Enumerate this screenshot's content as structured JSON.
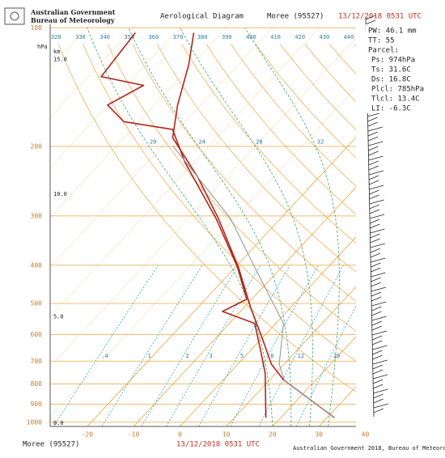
{
  "header": {
    "agency": "Australian Government",
    "bureau": "Bureau of Meteorology"
  },
  "chart_data": {
    "type": "skewt",
    "title": "Aerological Diagram",
    "station": "Moree (95527)",
    "time": "13/12/2018 0531 UTC",
    "y_unit": "hPa",
    "height_unit": "km",
    "xlim": [
      -28,
      38
    ],
    "ylim": [
      1025,
      98
    ],
    "xticks": [
      -20,
      -10,
      0,
      10,
      20,
      30,
      40
    ],
    "yticks": [
      1000,
      900,
      800,
      700,
      600,
      500,
      400,
      300,
      200,
      100
    ],
    "height_ticks": [
      {
        "value": 0,
        "label": "0.0"
      },
      {
        "value": 5,
        "label": "5.0"
      },
      {
        "value": 10,
        "label": "10.0"
      },
      {
        "value": 15,
        "label": "15.0"
      }
    ],
    "theta_labels": [
      320,
      330,
      340,
      350,
      360,
      370,
      380,
      390,
      400,
      410,
      420,
      430,
      440
    ],
    "mixing_ratio_labels": [
      {
        "value": 0.4,
        "label": ".4"
      },
      1,
      2,
      3,
      5,
      8,
      12,
      20
    ],
    "moist_adiabat_labels": [
      20,
      24,
      28,
      32
    ],
    "series": [
      {
        "color": "#b3261a",
        "pressure": [
          974,
          782,
          712,
          618,
          512,
          404,
          304,
          240,
          190,
          157,
          124,
          103
        ],
        "values": [
          31.6,
          13.1,
          7.2,
          0.5,
          -8.6,
          -19.4,
          -33.5,
          -46,
          -59.5,
          -65,
          -70.7,
          -76
        ]
      },
      {
        "color": "#b3261a",
        "pressure": [
          974,
          753,
          679,
          562,
          524,
          488,
          404,
          304,
          219,
          181,
          173,
          157,
          140,
          133,
          103
        ],
        "values": [
          16.8,
          7.8,
          3.5,
          -4.5,
          -13.9,
          -11.1,
          -19.6,
          -34,
          -52,
          -61.2,
          -73.3,
          -80.1,
          -76.3,
          -87.2,
          -88.6
        ]
      },
      {
        "color": "#a0a0a0",
        "pressure": [
          974,
          785,
          712,
          562,
          404,
          304,
          199
        ],
        "values": [
          31.6,
          13.4,
          8.9,
          1.7,
          -15.9,
          -30.9,
          -57.9
        ]
      }
    ]
  },
  "info": {
    "pw": "PW: 46.1 mm",
    "tt": "TT:  55",
    "parcel": "Parcel:",
    "ps": "Ps: 974hPa",
    "ts": "Ts:  31.6C",
    "ds": "Ds:  16.8C",
    "plcl": "Plcl: 785hPa",
    "tlcl": "Tlcl:  13.4C",
    "li": "LI:  -6.3C"
  },
  "footer": {
    "station": "Moree (95527)",
    "time": "13/12/2018 0531 UTC",
    "credit": "Australian Government 2018, Bureau of Meteorology"
  }
}
